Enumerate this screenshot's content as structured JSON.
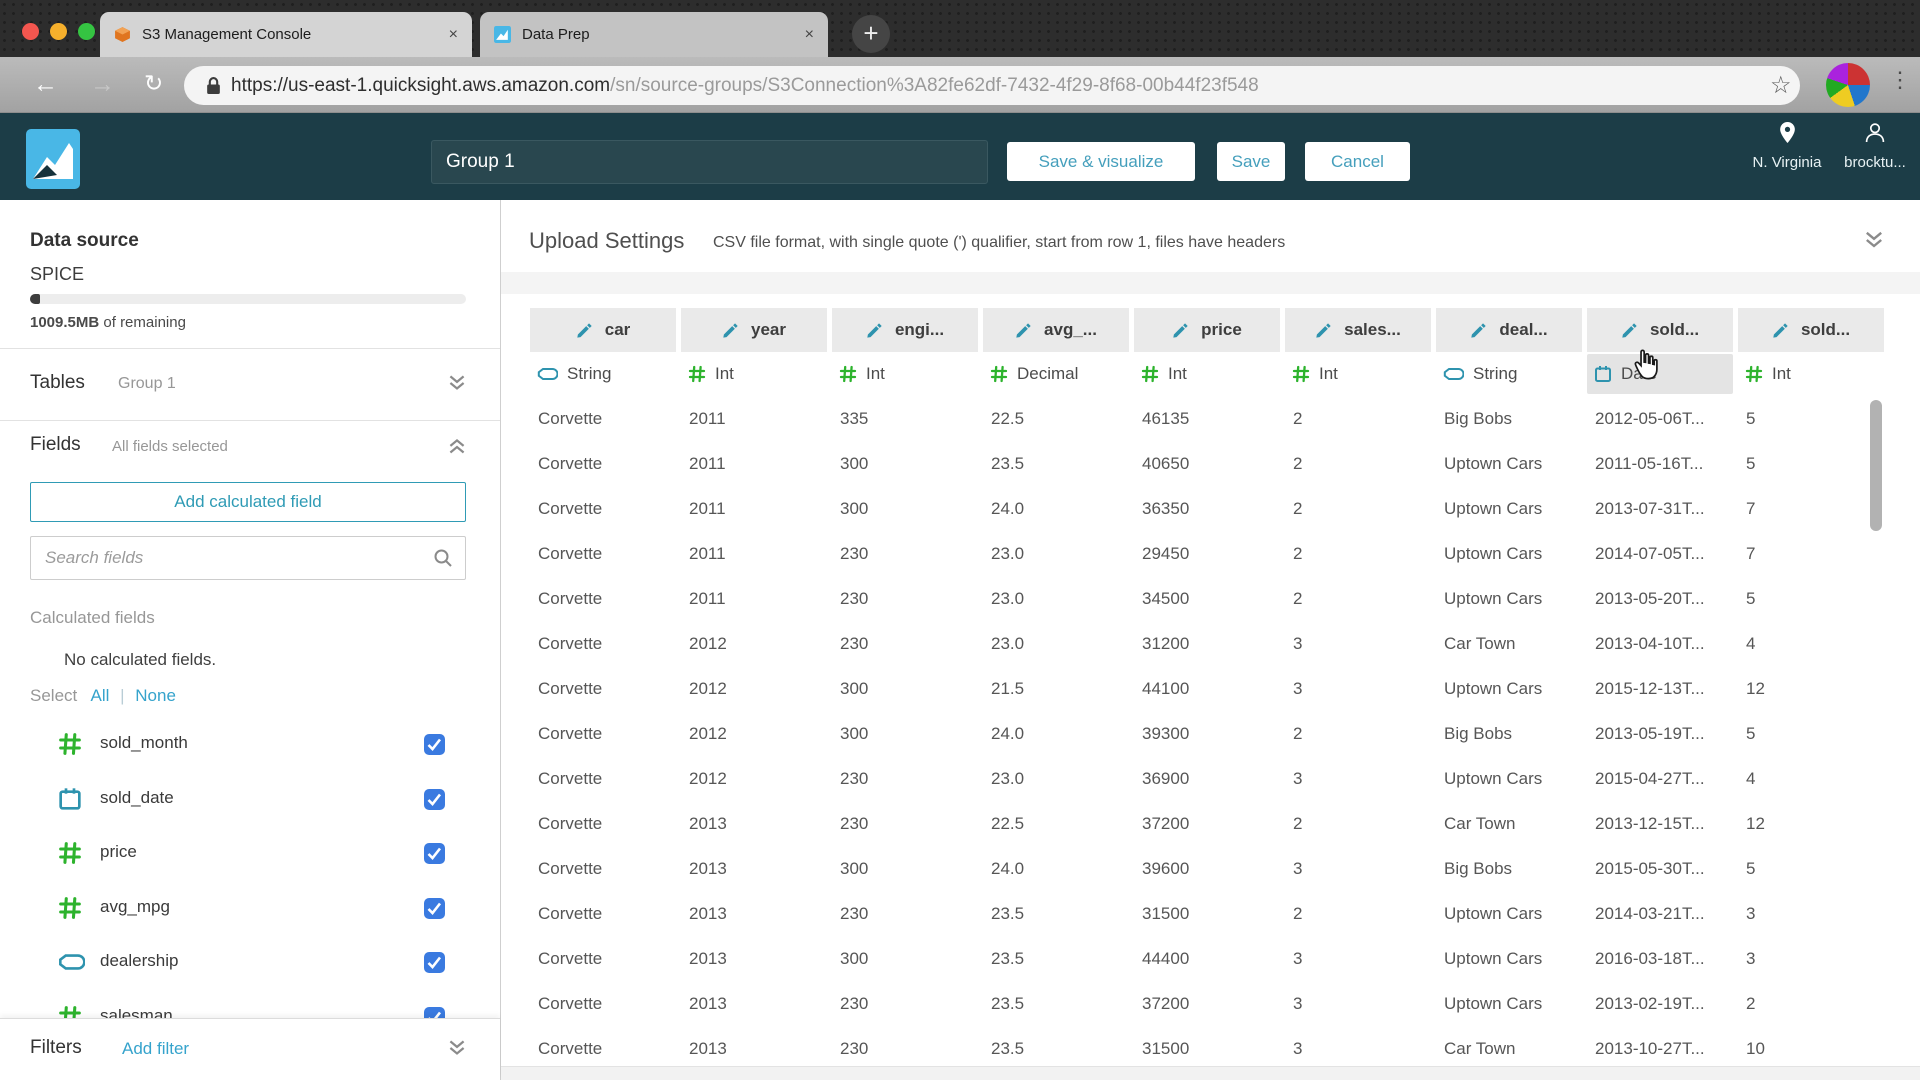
{
  "browser": {
    "tabs": [
      {
        "title": "S3 Management Console",
        "close": "×"
      },
      {
        "title": "Data Prep",
        "close": "×"
      }
    ],
    "new_tab": "+",
    "url_host": "https://us-east-1.quicksight.aws.amazon.com",
    "url_path": "/sn/source-groups/S3Connection%3A82fe62df-7432-4f29-8f68-00b44f23f548"
  },
  "header": {
    "dataset_name": "Group 1",
    "save_visualize_label": "Save & visualize",
    "save_label": "Save",
    "cancel_label": "Cancel",
    "region": "N. Virginia",
    "user": "brocktu..."
  },
  "sidebar": {
    "data_source_label": "Data source",
    "engine": "SPICE",
    "capacity_value": "1009.5MB",
    "capacity_suffix": " of remaining",
    "tables_label": "Tables",
    "tables_value": "Group 1",
    "fields_label": "Fields",
    "fields_status": "All fields selected",
    "add_calculated_label": "Add calculated field",
    "search_placeholder": "Search fields",
    "calculated_label": "Calculated fields",
    "calculated_empty": "No calculated fields.",
    "select_label": "Select",
    "select_all": "All",
    "select_none": "None",
    "field_items": [
      {
        "name": "sold_month",
        "type": "int",
        "checked": true
      },
      {
        "name": "sold_date",
        "type": "date",
        "checked": true
      },
      {
        "name": "price",
        "type": "int",
        "checked": true
      },
      {
        "name": "avg_mpg",
        "type": "int",
        "checked": true
      },
      {
        "name": "dealership",
        "type": "string",
        "checked": true
      },
      {
        "name": "salesman",
        "type": "int",
        "checked": true
      }
    ],
    "filters_label": "Filters",
    "add_filter_label": "Add filter"
  },
  "main": {
    "upload_settings_title": "Upload Settings",
    "upload_settings_desc": "CSV file format, with single quote (') qualifier, start from row 1, files have headers",
    "table": {
      "columns": [
        {
          "name": "car",
          "type": "String",
          "type_icon": "string",
          "hovered": false
        },
        {
          "name": "year",
          "type": "Int",
          "type_icon": "int",
          "hovered": false
        },
        {
          "name": "engi...",
          "type": "Int",
          "type_icon": "int",
          "hovered": false
        },
        {
          "name": "avg_...",
          "type": "Decimal",
          "type_icon": "int",
          "hovered": false
        },
        {
          "name": "price",
          "type": "Int",
          "type_icon": "int",
          "hovered": false
        },
        {
          "name": "sales...",
          "type": "Int",
          "type_icon": "int",
          "hovered": false
        },
        {
          "name": "deal...",
          "type": "String",
          "type_icon": "string",
          "hovered": false
        },
        {
          "name": "sold...",
          "type": "Date",
          "type_icon": "date",
          "hovered": true
        },
        {
          "name": "sold...",
          "type": "Int",
          "type_icon": "int",
          "hovered": false
        }
      ],
      "rows": [
        [
          "Corvette",
          "2011",
          "335",
          "22.5",
          "46135",
          "2",
          "Big Bobs",
          "2012-05-06T...",
          "5"
        ],
        [
          "Corvette",
          "2011",
          "300",
          "23.5",
          "40650",
          "2",
          "Uptown Cars",
          "2011-05-16T...",
          "5"
        ],
        [
          "Corvette",
          "2011",
          "300",
          "24.0",
          "36350",
          "2",
          "Uptown Cars",
          "2013-07-31T...",
          "7"
        ],
        [
          "Corvette",
          "2011",
          "230",
          "23.0",
          "29450",
          "2",
          "Uptown Cars",
          "2014-07-05T...",
          "7"
        ],
        [
          "Corvette",
          "2011",
          "230",
          "23.0",
          "34500",
          "2",
          "Uptown Cars",
          "2013-05-20T...",
          "5"
        ],
        [
          "Corvette",
          "2012",
          "230",
          "23.0",
          "31200",
          "3",
          "Car Town",
          "2013-04-10T...",
          "4"
        ],
        [
          "Corvette",
          "2012",
          "300",
          "21.5",
          "44100",
          "3",
          "Uptown Cars",
          "2015-12-13T...",
          "12"
        ],
        [
          "Corvette",
          "2012",
          "300",
          "24.0",
          "39300",
          "2",
          "Big Bobs",
          "2013-05-19T...",
          "5"
        ],
        [
          "Corvette",
          "2012",
          "230",
          "23.0",
          "36900",
          "3",
          "Uptown Cars",
          "2015-04-27T...",
          "4"
        ],
        [
          "Corvette",
          "2013",
          "230",
          "22.5",
          "37200",
          "2",
          "Car Town",
          "2013-12-15T...",
          "12"
        ],
        [
          "Corvette",
          "2013",
          "300",
          "24.0",
          "39600",
          "3",
          "Big Bobs",
          "2015-05-30T...",
          "5"
        ],
        [
          "Corvette",
          "2013",
          "230",
          "23.5",
          "31500",
          "2",
          "Uptown Cars",
          "2014-03-21T...",
          "3"
        ],
        [
          "Corvette",
          "2013",
          "300",
          "23.5",
          "44400",
          "3",
          "Uptown Cars",
          "2016-03-18T...",
          "3"
        ],
        [
          "Corvette",
          "2013",
          "230",
          "23.5",
          "37200",
          "3",
          "Uptown Cars",
          "2013-02-19T...",
          "2"
        ],
        [
          "Corvette",
          "2013",
          "230",
          "23.5",
          "31500",
          "3",
          "Car Town",
          "2013-10-27T...",
          "10"
        ]
      ]
    }
  },
  "colors": {
    "header_teal": "#1c3d47",
    "accent_blue": "#35a3cc",
    "int_green": "#2db32d",
    "checkbox_blue": "#3a7ae0"
  }
}
